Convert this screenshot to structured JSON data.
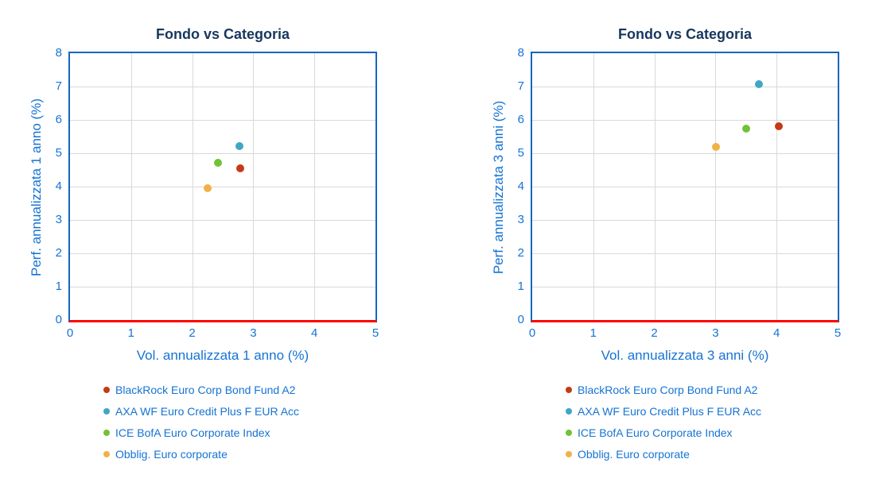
{
  "styles": {
    "title_color": "#17375e",
    "axis_text_color": "#1573d4",
    "plot_border_color": "#1565c0",
    "baseline_color": "#ff0000",
    "gridline_color": "#d9d9d9",
    "background_color": "#ffffff"
  },
  "chart_data": [
    {
      "type": "scatter",
      "title": "Fondo vs Categoria",
      "xlabel": "Vol. annualizzata 1 anno (%)",
      "ylabel": "Perf. annualizzata 1 anno (%)",
      "xlim": [
        0,
        5
      ],
      "ylim": [
        0,
        8
      ],
      "xticks": [
        0,
        1,
        2,
        3,
        4,
        5
      ],
      "yticks": [
        0,
        1,
        2,
        3,
        4,
        5,
        6,
        7,
        8
      ],
      "grid": true,
      "legend_position": "bottom-left",
      "series": [
        {
          "name": "BlackRock Euro Corp Bond Fund A2",
          "color": "#c53a14",
          "points": [
            [
              2.79,
              4.54
            ]
          ]
        },
        {
          "name": "AXA WF Euro Credit Plus F EUR Acc",
          "color": "#41a6c6",
          "points": [
            [
              2.77,
              5.21
            ]
          ]
        },
        {
          "name": "ICE BofA Euro Corporate Index",
          "color": "#72c236",
          "points": [
            [
              2.42,
              4.72
            ]
          ]
        },
        {
          "name": "Obblig. Euro corporate",
          "color": "#f0b246",
          "points": [
            [
              2.25,
              3.95
            ]
          ]
        }
      ]
    },
    {
      "type": "scatter",
      "title": "Fondo vs Categoria",
      "xlabel": "Vol. annualizzata 3 anni (%)",
      "ylabel": "Perf. annualizzata 3 anni (%)",
      "xlim": [
        0,
        5
      ],
      "ylim": [
        0,
        8
      ],
      "xticks": [
        0,
        1,
        2,
        3,
        4,
        5
      ],
      "yticks": [
        0,
        1,
        2,
        3,
        4,
        5,
        6,
        7,
        8
      ],
      "grid": true,
      "legend_position": "bottom-left",
      "series": [
        {
          "name": "BlackRock Euro Corp Bond Fund A2",
          "color": "#c53a14",
          "points": [
            [
              4.03,
              5.8
            ]
          ]
        },
        {
          "name": "AXA WF Euro Credit Plus F EUR Acc",
          "color": "#41a6c6",
          "points": [
            [
              3.71,
              7.06
            ]
          ]
        },
        {
          "name": "ICE BofA Euro Corporate Index",
          "color": "#72c236",
          "points": [
            [
              3.5,
              5.74
            ]
          ]
        },
        {
          "name": "Obblig. Euro corporate",
          "color": "#f0b246",
          "points": [
            [
              3.01,
              5.2
            ]
          ]
        }
      ]
    }
  ]
}
